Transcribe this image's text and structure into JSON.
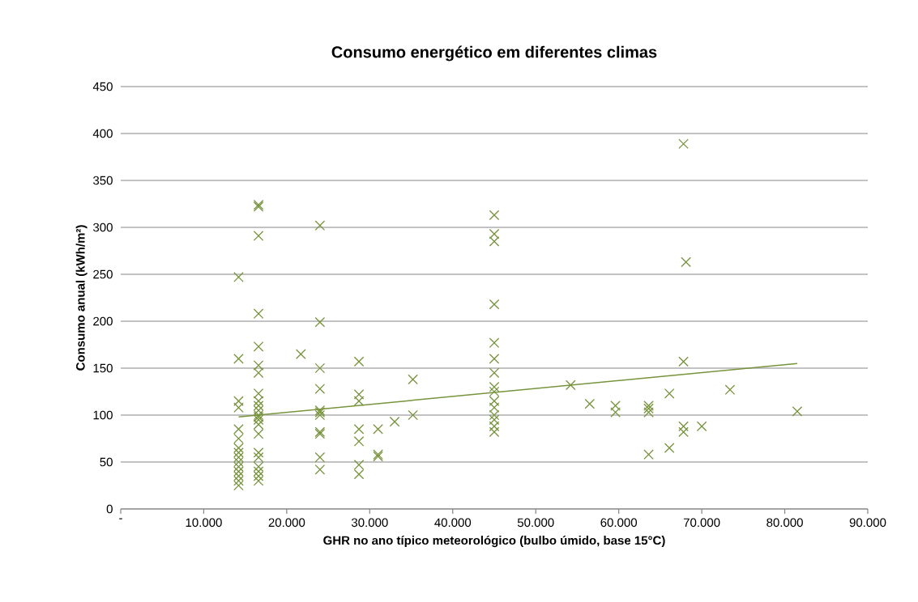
{
  "chart_data": {
    "type": "scatter",
    "title": "Consumo energético em diferentes climas",
    "xlabel": "GHR no ano típico meteorológico (bulbo úmido, base 15°C)",
    "ylabel": "Consumo anual (kWh/m²)",
    "xlim": [
      0,
      90000
    ],
    "ylim": [
      0,
      450
    ],
    "xticks": [
      {
        "value": 0,
        "label": "-"
      },
      {
        "value": 10000,
        "label": "10.000"
      },
      {
        "value": 20000,
        "label": "20.000"
      },
      {
        "value": 30000,
        "label": "30.000"
      },
      {
        "value": 40000,
        "label": "40.000"
      },
      {
        "value": 50000,
        "label": "50.000"
      },
      {
        "value": 60000,
        "label": "60.000"
      },
      {
        "value": 70000,
        "label": "70.000"
      },
      {
        "value": 80000,
        "label": "80.000"
      },
      {
        "value": 90000,
        "label": "90.000"
      }
    ],
    "yticks": [
      0,
      50,
      100,
      150,
      200,
      250,
      300,
      350,
      400,
      450
    ],
    "grid": "y",
    "legend": false,
    "marker": "cross",
    "series": [
      {
        "color": "#77933c",
        "x": [
          14200,
          14200,
          14200,
          14200,
          14200,
          14200,
          14200,
          14200,
          14200,
          14200,
          14200,
          14200,
          14200,
          14200,
          14200,
          16600,
          16600,
          16600,
          16600,
          16600,
          16600,
          16600,
          16600,
          16600,
          16600,
          16600,
          16600,
          16600,
          16600,
          16600,
          16600,
          16600,
          16600,
          16600,
          16600,
          16600,
          16600,
          21700,
          24000,
          24000,
          24000,
          24000,
          24000,
          24000,
          24000,
          24000,
          24000,
          24000,
          24000,
          28700,
          28700,
          28700,
          28700,
          28700,
          28700,
          28700,
          31000,
          31000,
          31000,
          33000,
          35200,
          35200,
          45000,
          45000,
          45000,
          45000,
          45000,
          45000,
          45000,
          45000,
          45000,
          45000,
          45000,
          45000,
          45000,
          45000,
          45000,
          54200,
          56500,
          59600,
          59600,
          63600,
          63600,
          63600,
          63600,
          66100,
          66100,
          67800,
          67800,
          67800,
          67800,
          68100,
          70000,
          73400,
          81500
        ],
        "values": [
          247,
          160,
          115,
          108,
          85,
          75,
          65,
          60,
          55,
          50,
          45,
          40,
          35,
          30,
          25,
          324,
          322,
          291,
          208,
          173,
          153,
          145,
          123,
          115,
          110,
          105,
          100,
          98,
          95,
          90,
          80,
          60,
          55,
          45,
          40,
          35,
          30,
          165,
          302,
          199,
          150,
          128,
          105,
          103,
          100,
          82,
          80,
          55,
          42,
          157,
          122,
          115,
          85,
          72,
          47,
          37,
          85,
          58,
          56,
          93,
          138,
          100,
          313,
          293,
          285,
          218,
          177,
          160,
          145,
          130,
          125,
          115,
          108,
          100,
          95,
          88,
          82,
          132,
          112,
          110,
          103,
          110,
          107,
          103,
          58,
          123,
          65,
          389,
          157,
          88,
          82,
          263,
          88,
          127,
          104
        ]
      },
      {
        "type": "line",
        "color": "#77933c",
        "marker": "none",
        "x": [
          14200,
          81500
        ],
        "values": [
          98,
          155
        ]
      }
    ]
  }
}
